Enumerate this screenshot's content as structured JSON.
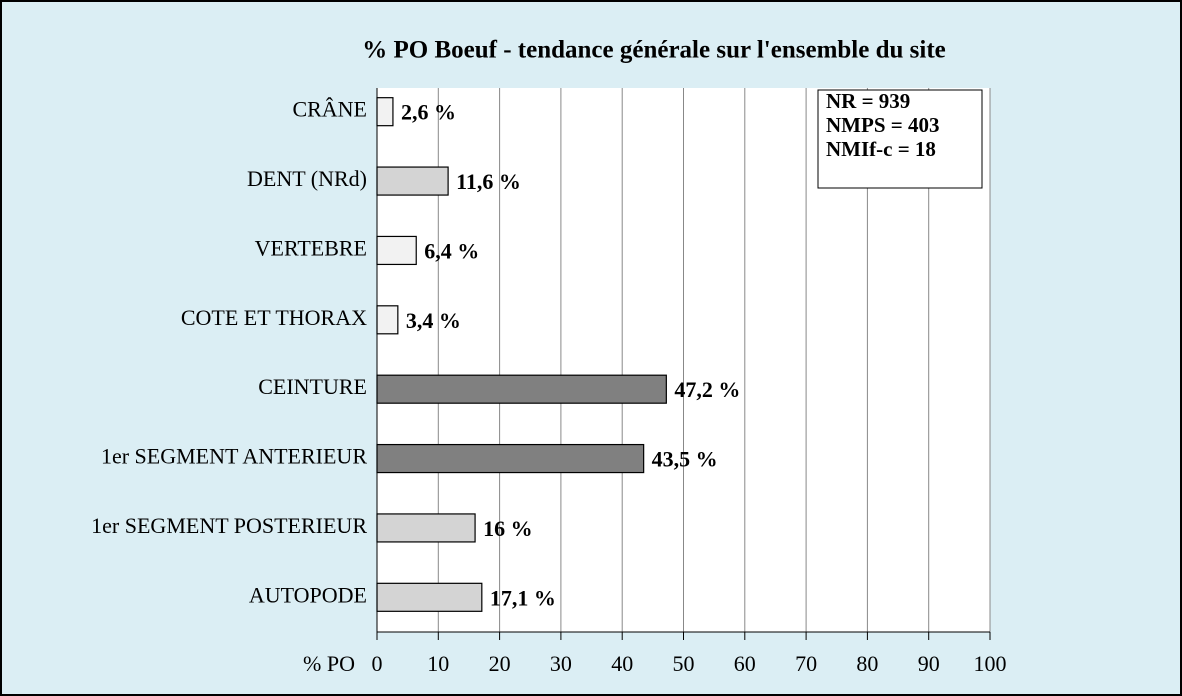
{
  "chart_data": {
    "type": "bar",
    "orientation": "horizontal",
    "title": "% PO Boeuf - tendance générale sur l'ensemble du site",
    "xlabel": "% PO",
    "categories": [
      "CRÂNE",
      "DENT (NRd)",
      "VERTEBRE",
      "COTE ET THORAX",
      "CEINTURE",
      "1er SEGMENT ANTERIEUR",
      "1er SEGMENT POSTERIEUR",
      "AUTOPODE"
    ],
    "values": [
      2.6,
      11.6,
      6.4,
      3.4,
      47.2,
      43.5,
      16,
      17.1
    ],
    "value_labels": [
      "2,6 %",
      "11,6 %",
      "6,4 %",
      "3,4 %",
      "47,2 %",
      "43,5 %",
      "16 %",
      "17,1 %"
    ],
    "colors": [
      "#f2f2f2",
      "#d4d4d4",
      "#f2f2f2",
      "#f2f2f2",
      "#808080",
      "#808080",
      "#d4d4d4",
      "#d4d4d4"
    ],
    "xlim": [
      0,
      100
    ],
    "xticks": [
      0,
      10,
      20,
      30,
      40,
      50,
      60,
      70,
      80,
      90,
      100
    ],
    "grid": true,
    "annotation": [
      "NR = 939",
      "NMPS = 403",
      "NMIf-c = 18"
    ]
  }
}
